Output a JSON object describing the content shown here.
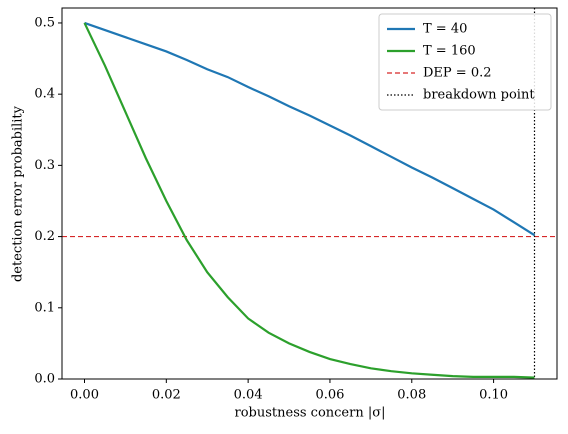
{
  "chart_data": {
    "type": "line",
    "xlabel": "robustness concern |σ|",
    "ylabel": "detection error probability",
    "x": [
      0,
      0.005,
      0.01,
      0.015,
      0.02,
      0.025,
      0.03,
      0.035,
      0.04,
      0.045,
      0.05,
      0.055,
      0.06,
      0.065,
      0.07,
      0.075,
      0.08,
      0.085,
      0.09,
      0.095,
      0.1,
      0.105,
      0.11
    ],
    "series": [
      {
        "name": "T = 40",
        "color": "#1f77b4",
        "values": [
          0.5,
          0.49,
          0.48,
          0.47,
          0.46,
          0.448,
          0.435,
          0.424,
          0.41,
          0.397,
          0.383,
          0.37,
          0.356,
          0.342,
          0.327,
          0.312,
          0.297,
          0.283,
          0.268,
          0.253,
          0.238,
          0.22,
          0.202
        ]
      },
      {
        "name": "T = 160",
        "color": "#2ca02c",
        "values": [
          0.5,
          0.44,
          0.375,
          0.31,
          0.25,
          0.195,
          0.15,
          0.115,
          0.085,
          0.065,
          0.05,
          0.038,
          0.028,
          0.021,
          0.015,
          0.011,
          0.008,
          0.006,
          0.004,
          0.003,
          0.003,
          0.003,
          0.002
        ]
      }
    ],
    "hlines": [
      {
        "name": "DEP = 0.2",
        "value": 0.2,
        "color": "#d62728",
        "style": "dashed"
      }
    ],
    "vlines": [
      {
        "name": "breakdown point",
        "value": 0.11,
        "color": "#000000",
        "style": "dotted"
      }
    ],
    "xlim": [
      -0.0055,
      0.1155
    ],
    "ylim": [
      0,
      0.521
    ],
    "xticks": [
      {
        "value": 0,
        "label": "0.00"
      },
      {
        "value": 0.02,
        "label": "0.02"
      },
      {
        "value": 0.04,
        "label": "0.04"
      },
      {
        "value": 0.06,
        "label": "0.06"
      },
      {
        "value": 0.08,
        "label": "0.08"
      },
      {
        "value": 0.1,
        "label": "0.10"
      }
    ],
    "yticks": [
      {
        "value": 0,
        "label": "0.0"
      },
      0.1,
      0.2,
      0.3,
      0.4,
      0.5
    ],
    "legend": "upper right",
    "grid": false
  }
}
